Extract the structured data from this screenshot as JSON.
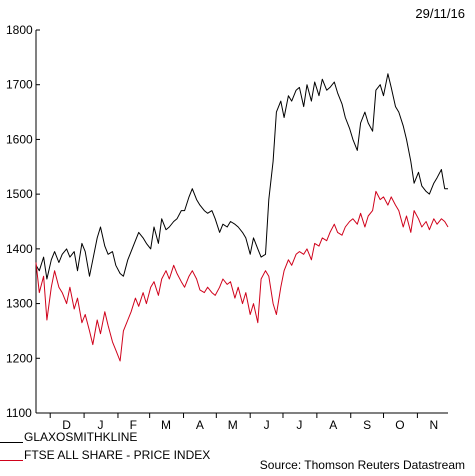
{
  "header": {
    "date": "29/11/16"
  },
  "footer": {
    "source": "Source: Thomson Reuters Datastream"
  },
  "chart_data": {
    "type": "line",
    "title": "",
    "xlabel": "",
    "ylabel": "",
    "ylim": [
      1100,
      1800
    ],
    "yticks": [
      1100,
      1200,
      1300,
      1400,
      1500,
      1600,
      1700,
      1800
    ],
    "x_range": [
      "2015-11-18",
      "2016-11-29"
    ],
    "month_labels": [
      {
        "label": "D",
        "date": "2015-12-16"
      },
      {
        "label": "J",
        "date": "2016-01-16"
      },
      {
        "label": "F",
        "date": "2016-02-15"
      },
      {
        "label": "M",
        "date": "2016-03-16"
      },
      {
        "label": "A",
        "date": "2016-04-16"
      },
      {
        "label": "M",
        "date": "2016-05-16"
      },
      {
        "label": "J",
        "date": "2016-06-16"
      },
      {
        "label": "J",
        "date": "2016-07-16"
      },
      {
        "label": "A",
        "date": "2016-08-16"
      },
      {
        "label": "S",
        "date": "2016-09-16"
      },
      {
        "label": "O",
        "date": "2016-10-16"
      },
      {
        "label": "N",
        "date": "2016-11-16"
      }
    ],
    "month_ticks": [
      "2015-12-01",
      "2016-01-01",
      "2016-02-01",
      "2016-03-01",
      "2016-04-01",
      "2016-05-01",
      "2016-06-01",
      "2016-07-01",
      "2016-08-01",
      "2016-09-01",
      "2016-10-01",
      "2016-11-01"
    ],
    "grid": false,
    "legend_position": "bottom-left",
    "series": [
      {
        "name": "GLAXOSMITHKLINE",
        "color": "#000000",
        "x": [
          "2015-11-18",
          "2015-11-21",
          "2015-11-25",
          "2015-11-28",
          "2015-12-02",
          "2015-12-05",
          "2015-12-09",
          "2015-12-12",
          "2015-12-16",
          "2015-12-19",
          "2015-12-23",
          "2015-12-26",
          "2015-12-30",
          "2016-01-02",
          "2016-01-06",
          "2016-01-09",
          "2016-01-13",
          "2016-01-16",
          "2016-01-20",
          "2016-01-23",
          "2016-01-27",
          "2016-01-30",
          "2016-02-03",
          "2016-02-06",
          "2016-02-10",
          "2016-02-13",
          "2016-02-17",
          "2016-02-20",
          "2016-02-24",
          "2016-02-27",
          "2016-03-02",
          "2016-03-05",
          "2016-03-09",
          "2016-03-12",
          "2016-03-16",
          "2016-03-19",
          "2016-03-23",
          "2016-03-26",
          "2016-03-30",
          "2016-04-02",
          "2016-04-06",
          "2016-04-09",
          "2016-04-13",
          "2016-04-16",
          "2016-04-20",
          "2016-04-23",
          "2016-04-27",
          "2016-04-30",
          "2016-05-04",
          "2016-05-07",
          "2016-05-11",
          "2016-05-14",
          "2016-05-18",
          "2016-05-21",
          "2016-05-25",
          "2016-05-28",
          "2016-06-01",
          "2016-06-04",
          "2016-06-08",
          "2016-06-11",
          "2016-06-15",
          "2016-06-18",
          "2016-06-22",
          "2016-06-25",
          "2016-06-29",
          "2016-07-02",
          "2016-07-06",
          "2016-07-09",
          "2016-07-13",
          "2016-07-16",
          "2016-07-20",
          "2016-07-23",
          "2016-07-27",
          "2016-07-30",
          "2016-08-03",
          "2016-08-06",
          "2016-08-10",
          "2016-08-13",
          "2016-08-17",
          "2016-08-20",
          "2016-08-24",
          "2016-08-27",
          "2016-08-31",
          "2016-09-03",
          "2016-09-07",
          "2016-09-10",
          "2016-09-14",
          "2016-09-17",
          "2016-09-21",
          "2016-09-24",
          "2016-09-28",
          "2016-10-01",
          "2016-10-05",
          "2016-10-08",
          "2016-10-12",
          "2016-10-15",
          "2016-10-19",
          "2016-10-22",
          "2016-10-26",
          "2016-10-29",
          "2016-11-02",
          "2016-11-05",
          "2016-11-09",
          "2016-11-12",
          "2016-11-16",
          "2016-11-19",
          "2016-11-23",
          "2016-11-26",
          "2016-11-29"
        ],
        "values": [
          1370,
          1360,
          1385,
          1345,
          1380,
          1395,
          1375,
          1390,
          1400,
          1385,
          1395,
          1360,
          1410,
          1395,
          1350,
          1380,
          1420,
          1440,
          1405,
          1390,
          1395,
          1370,
          1355,
          1350,
          1380,
          1395,
          1415,
          1430,
          1420,
          1410,
          1400,
          1440,
          1410,
          1455,
          1435,
          1440,
          1450,
          1455,
          1470,
          1470,
          1495,
          1510,
          1490,
          1480,
          1470,
          1465,
          1470,
          1455,
          1430,
          1445,
          1440,
          1450,
          1445,
          1440,
          1430,
          1420,
          1390,
          1420,
          1400,
          1385,
          1390,
          1490,
          1560,
          1650,
          1670,
          1640,
          1680,
          1670,
          1690,
          1695,
          1660,
          1700,
          1670,
          1705,
          1680,
          1710,
          1690,
          1695,
          1705,
          1685,
          1665,
          1640,
          1620,
          1600,
          1580,
          1630,
          1650,
          1630,
          1615,
          1690,
          1700,
          1680,
          1720,
          1695,
          1660,
          1650,
          1625,
          1600,
          1560,
          1520,
          1540,
          1515,
          1505,
          1500,
          1520,
          1530,
          1545,
          1510,
          1510
        ]
      },
      {
        "name": "FTSE ALL SHARE - PRICE INDEX",
        "color": "#d0021b",
        "x": [
          "2015-11-18",
          "2015-11-21",
          "2015-11-25",
          "2015-11-28",
          "2015-12-02",
          "2015-12-05",
          "2015-12-09",
          "2015-12-12",
          "2015-12-16",
          "2015-12-19",
          "2015-12-23",
          "2015-12-26",
          "2015-12-30",
          "2016-01-02",
          "2016-01-06",
          "2016-01-09",
          "2016-01-13",
          "2016-01-16",
          "2016-01-20",
          "2016-01-23",
          "2016-01-27",
          "2016-01-30",
          "2016-02-03",
          "2016-02-06",
          "2016-02-10",
          "2016-02-13",
          "2016-02-17",
          "2016-02-20",
          "2016-02-24",
          "2016-02-27",
          "2016-03-02",
          "2016-03-05",
          "2016-03-09",
          "2016-03-12",
          "2016-03-16",
          "2016-03-19",
          "2016-03-23",
          "2016-03-26",
          "2016-03-30",
          "2016-04-02",
          "2016-04-06",
          "2016-04-09",
          "2016-04-13",
          "2016-04-16",
          "2016-04-20",
          "2016-04-23",
          "2016-04-27",
          "2016-04-30",
          "2016-05-04",
          "2016-05-07",
          "2016-05-11",
          "2016-05-14",
          "2016-05-18",
          "2016-05-21",
          "2016-05-25",
          "2016-05-28",
          "2016-06-01",
          "2016-06-04",
          "2016-06-08",
          "2016-06-11",
          "2016-06-15",
          "2016-06-18",
          "2016-06-22",
          "2016-06-25",
          "2016-06-29",
          "2016-07-02",
          "2016-07-06",
          "2016-07-09",
          "2016-07-13",
          "2016-07-16",
          "2016-07-20",
          "2016-07-23",
          "2016-07-27",
          "2016-07-30",
          "2016-08-03",
          "2016-08-06",
          "2016-08-10",
          "2016-08-13",
          "2016-08-17",
          "2016-08-20",
          "2016-08-24",
          "2016-08-27",
          "2016-08-31",
          "2016-09-03",
          "2016-09-07",
          "2016-09-10",
          "2016-09-14",
          "2016-09-17",
          "2016-09-21",
          "2016-09-24",
          "2016-09-28",
          "2016-10-01",
          "2016-10-05",
          "2016-10-08",
          "2016-10-12",
          "2016-10-15",
          "2016-10-19",
          "2016-10-22",
          "2016-10-26",
          "2016-10-29",
          "2016-11-02",
          "2016-11-05",
          "2016-11-09",
          "2016-11-12",
          "2016-11-16",
          "2016-11-19",
          "2016-11-23",
          "2016-11-26",
          "2016-11-29"
        ],
        "values": [
          1375,
          1320,
          1350,
          1270,
          1330,
          1360,
          1330,
          1320,
          1300,
          1330,
          1290,
          1310,
          1265,
          1280,
          1250,
          1225,
          1270,
          1245,
          1285,
          1260,
          1230,
          1215,
          1195,
          1250,
          1270,
          1285,
          1310,
          1295,
          1320,
          1300,
          1330,
          1340,
          1315,
          1345,
          1360,
          1345,
          1370,
          1355,
          1340,
          1330,
          1350,
          1360,
          1345,
          1325,
          1320,
          1330,
          1320,
          1315,
          1330,
          1345,
          1335,
          1340,
          1310,
          1330,
          1300,
          1320,
          1280,
          1300,
          1265,
          1345,
          1360,
          1350,
          1300,
          1280,
          1330,
          1360,
          1380,
          1370,
          1390,
          1395,
          1390,
          1400,
          1380,
          1410,
          1405,
          1420,
          1415,
          1430,
          1445,
          1430,
          1425,
          1440,
          1450,
          1455,
          1445,
          1465,
          1440,
          1460,
          1470,
          1505,
          1490,
          1495,
          1480,
          1495,
          1480,
          1470,
          1440,
          1460,
          1430,
          1470,
          1455,
          1440,
          1450,
          1435,
          1455,
          1445,
          1455,
          1450,
          1440
        ]
      }
    ]
  }
}
